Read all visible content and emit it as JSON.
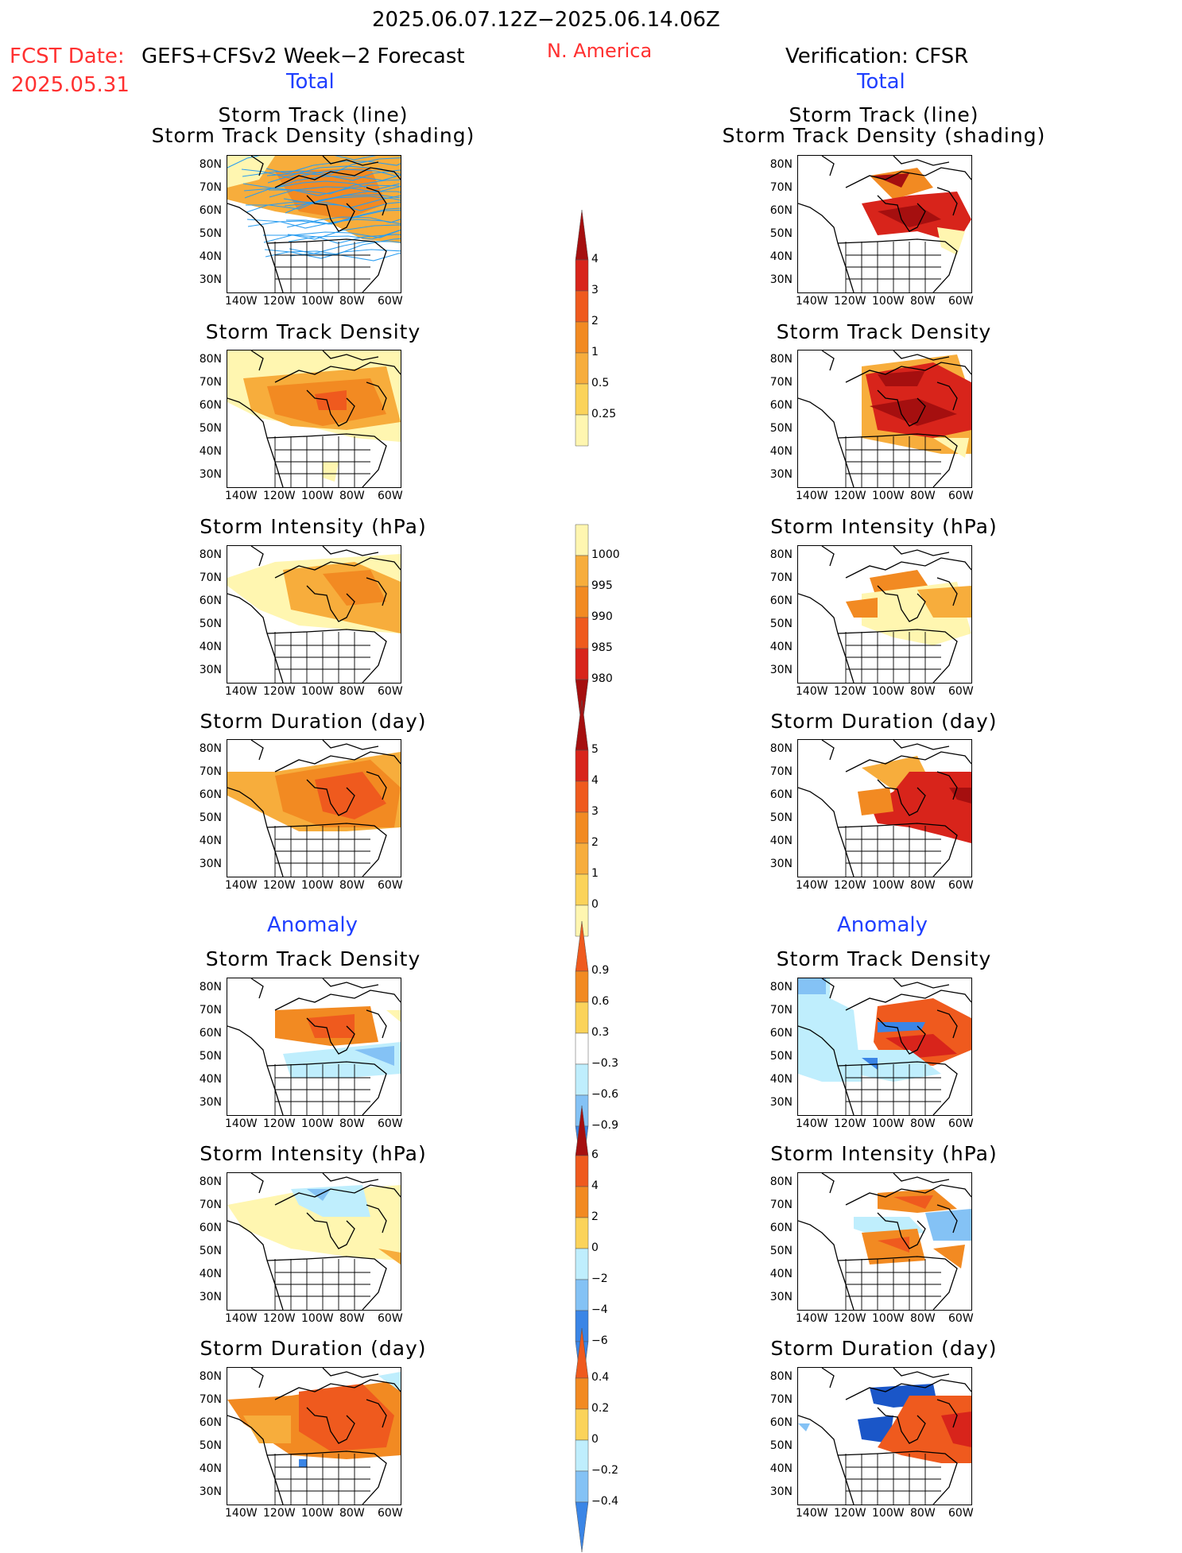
{
  "header": {
    "period": "2025.06.07.12Z−2025.06.14.06Z",
    "fcst_date_label": "FCST Date:",
    "fcst_model": "GEFS+CFSv2 Week−2 Forecast",
    "fcst_date": "2025.05.31",
    "region": "N. America",
    "verification": "Verification: CFSR",
    "total_left": "Total",
    "total_right": "Total",
    "anomaly_left": "Anomaly",
    "anomaly_right": "Anomaly"
  },
  "panel_titles": {
    "track_line": "Storm Track (line)",
    "track_density_shading": "Storm Track Density (shading)",
    "density": "Storm Track Density",
    "intensity": "Storm Intensity (hPa)",
    "duration": "Storm Duration (day)"
  },
  "axes": {
    "lat": [
      "80N",
      "70N",
      "60N",
      "50N",
      "40N",
      "30N"
    ],
    "lon": [
      "140W",
      "120W",
      "100W",
      "80W",
      "60W"
    ]
  },
  "colorbars": {
    "density_total": [
      "4",
      "3",
      "2",
      "1",
      "0.5",
      "0.25"
    ],
    "intensity_total": [
      "1000",
      "995",
      "990",
      "985",
      "980"
    ],
    "duration_total": [
      "5",
      "4",
      "3",
      "2",
      "1",
      "0"
    ],
    "density_anom": [
      "0.9",
      "0.6",
      "0.3",
      "−0.3",
      "−0.6",
      "−0.9"
    ],
    "intensity_anom": [
      "6",
      "4",
      "2",
      "0",
      "−2",
      "−4",
      "−6"
    ],
    "duration_anom": [
      "0.4",
      "0.2",
      "0",
      "−0.2",
      "−0.4"
    ]
  },
  "colors": {
    "light_yellow": "#fff6b0",
    "yellow": "#fbd35a",
    "orange_light": "#f7ad3c",
    "orange": "#f28a22",
    "red_orange": "#ef5a1e",
    "red": "#d8241b",
    "dark_red": "#a50f0f",
    "light_blue": "#bfeefd",
    "mid_blue": "#84c2f5",
    "blue": "#3a85e6",
    "dark_blue": "#1a56c8",
    "track_line": "#2a9df0"
  }
}
